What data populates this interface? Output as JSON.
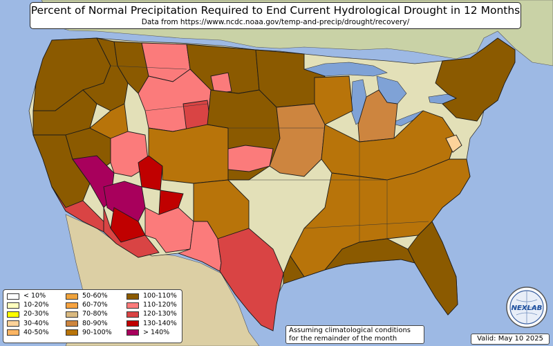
{
  "title": "Percent of Normal Precipitation Required to End Current Hydrological Drought in 12 Months",
  "subtitle": "Data from https://www.ncdc.noaa.gov/temp-and-precip/drought/recovery/",
  "legend": {
    "columns": [
      [
        {
          "label": "< 10%",
          "color": "#ffffff"
        },
        {
          "label": "10-20%",
          "color": "#ffffbf"
        },
        {
          "label": "20-30%",
          "color": "#ffff00"
        },
        {
          "label": "30-40%",
          "color": "#fdd39a"
        },
        {
          "label": "40-50%",
          "color": "#fbb563"
        }
      ],
      [
        {
          "label": "50-60%",
          "color": "#f0a33c"
        },
        {
          "label": "60-70%",
          "color": "#f7a340"
        },
        {
          "label": "70-80%",
          "color": "#d9b980"
        },
        {
          "label": "80-90%",
          "color": "#cd853f"
        },
        {
          "label": "90-100%",
          "color": "#b8740a"
        }
      ],
      [
        {
          "label": "100-110%",
          "color": "#8b5a00"
        },
        {
          "label": "110-120%",
          "color": "#fb7b7b"
        },
        {
          "label": "120-130%",
          "color": "#d94444"
        },
        {
          "label": "130-140%",
          "color": "#c00000"
        },
        {
          "label": "> 140%",
          "color": "#a8005c"
        }
      ]
    ]
  },
  "note": {
    "line1": "Assuming climatological conditions",
    "line2": "for the remainder of the month"
  },
  "valid": "Valid: May 10 2025",
  "logo": {
    "text": "NEXLAB",
    "icon": "globe-logo-icon"
  },
  "colors": {
    "ocean": "#9db9e4",
    "land": "#e3e0b8",
    "canada": "#c9d2a6",
    "mexico": "#dccfa4",
    "lakes": "#7fa2d6",
    "border": "#1a1a1a"
  },
  "regions": [
    {
      "name": "pacific-northwest",
      "category": "100-110%"
    },
    {
      "name": "california",
      "category": "100-110%"
    },
    {
      "name": "socal-coast",
      "category": "120-130%"
    },
    {
      "name": "nevada",
      "category": "100-110%"
    },
    {
      "name": "nevada-east",
      "category": "90-100%"
    },
    {
      "name": "socal-desert",
      "category": "> 140%"
    },
    {
      "name": "arizona-west",
      "category": "> 140%"
    },
    {
      "name": "arizona-central",
      "category": "130-140%"
    },
    {
      "name": "arizona-south",
      "category": "120-130%"
    },
    {
      "name": "utah",
      "category": "110-120%"
    },
    {
      "name": "utah-red",
      "category": "130-140%"
    },
    {
      "name": "idaho",
      "category": "100-110%"
    },
    {
      "name": "montana-west",
      "category": "100-110%"
    },
    {
      "name": "montana-east",
      "category": "110-120%"
    },
    {
      "name": "wyoming",
      "category": "110-120%"
    },
    {
      "name": "wyoming-red",
      "category": "120-130%"
    },
    {
      "name": "colorado",
      "category": "90-100%"
    },
    {
      "name": "new-mexico-west",
      "category": "130-140%"
    },
    {
      "name": "new-mexico-east",
      "category": "110-120%"
    },
    {
      "name": "west-texas",
      "category": "110-120%"
    },
    {
      "name": "central-texas",
      "category": "120-130%"
    },
    {
      "name": "texas-panhandle",
      "category": "90-100%"
    },
    {
      "name": "dakotas",
      "category": "100-110%"
    },
    {
      "name": "south-dakota-red",
      "category": "110-120%"
    },
    {
      "name": "nebraska-kansas",
      "category": "100-110%"
    },
    {
      "name": "kansas-pink",
      "category": "110-120%"
    },
    {
      "name": "minnesota",
      "category": "100-110%"
    },
    {
      "name": "iowa-missouri",
      "category": "80-90%"
    },
    {
      "name": "wisconsin",
      "category": "90-100%"
    },
    {
      "name": "michigan",
      "category": "80-90%"
    },
    {
      "name": "ohio-valley",
      "category": "90-100%"
    },
    {
      "name": "southeast",
      "category": "90-100%"
    },
    {
      "name": "florida",
      "category": "100-110%"
    },
    {
      "name": "gulf-coast",
      "category": "100-110%"
    },
    {
      "name": "northeast",
      "category": "100-110%"
    },
    {
      "name": "mid-atlantic-light",
      "category": "30-40%"
    }
  ]
}
